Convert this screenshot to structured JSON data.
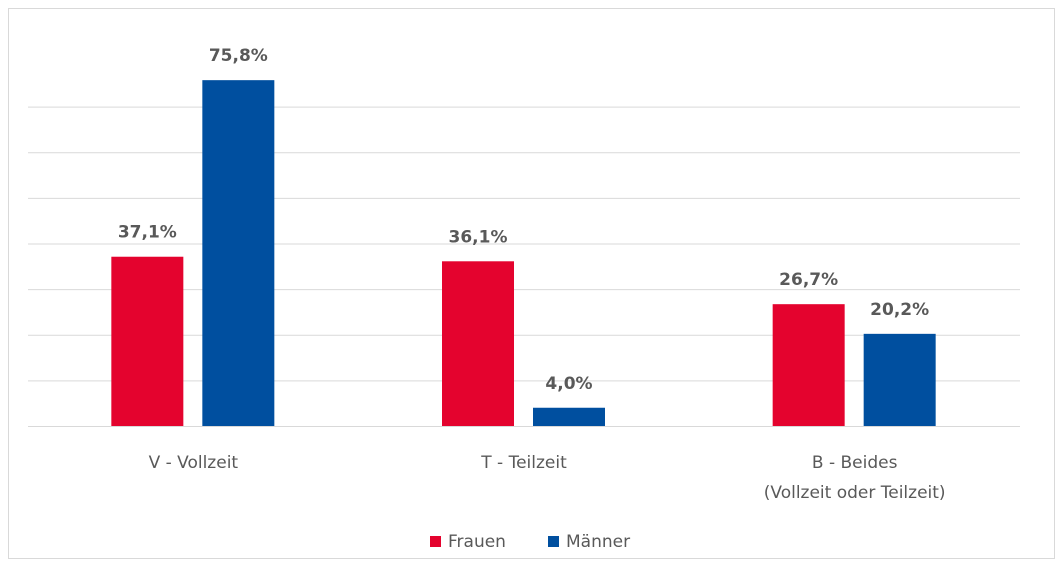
{
  "chart_data": {
    "type": "bar",
    "categories": [
      [
        "V - Vollzeit"
      ],
      [
        "T - Teilzeit"
      ],
      [
        "B - Beides",
        "(Vollzeit oder Teilzeit)"
      ]
    ],
    "series": [
      {
        "name": "Frauen",
        "color": "#e4032e",
        "values": [
          37.1,
          36.1,
          26.7
        ],
        "value_labels": [
          "37,1%",
          "36,1%",
          "26,7%"
        ]
      },
      {
        "name": "Männer",
        "color": "#004f9f",
        "values": [
          75.8,
          4.0,
          20.2
        ],
        "value_labels": [
          "75,8%",
          "4,0%",
          "20,2%"
        ]
      }
    ],
    "ylim": [
      0,
      80
    ],
    "yticks": [
      0,
      10,
      20,
      30,
      40,
      50,
      60,
      70
    ],
    "grid": true,
    "legend": "bottom"
  }
}
